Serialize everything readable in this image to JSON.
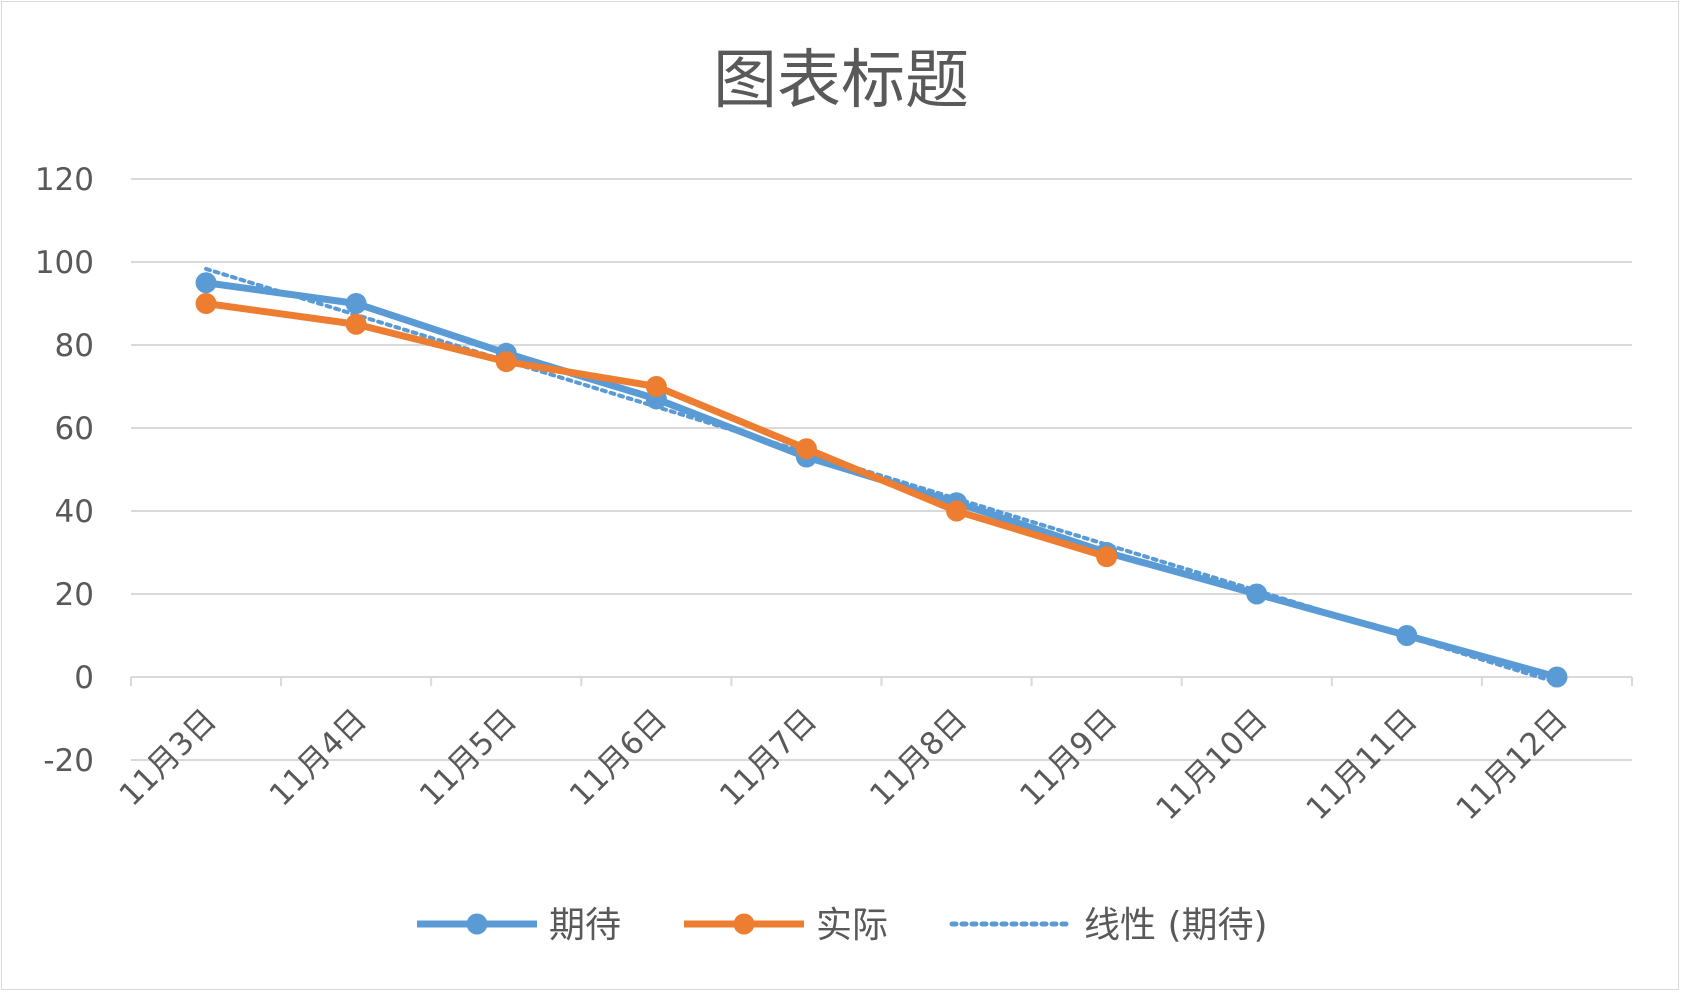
{
  "chart_data": {
    "type": "line",
    "title": "图表标题",
    "categories": [
      "11月3日",
      "11月4日",
      "11月5日",
      "11月6日",
      "11月7日",
      "11月8日",
      "11月9日",
      "11月10日",
      "11月11日",
      "11月12日"
    ],
    "series": [
      {
        "name": "期待",
        "color": "#5b9bd5",
        "values": [
          95,
          90,
          78,
          67,
          53,
          42,
          30,
          20,
          10,
          0
        ]
      },
      {
        "name": "实际",
        "color": "#ed7d31",
        "values": [
          90,
          85,
          76,
          70,
          55,
          40,
          29,
          null,
          null,
          null
        ]
      }
    ],
    "trendline": {
      "name": "线性 (期待)",
      "color": "#5b9bd5",
      "style": "dotted",
      "of_series": "期待"
    },
    "ylim": [
      -20,
      120
    ],
    "yticks": [
      -20,
      0,
      20,
      40,
      60,
      80,
      100,
      120
    ],
    "grid": true,
    "legend": "bottom"
  }
}
